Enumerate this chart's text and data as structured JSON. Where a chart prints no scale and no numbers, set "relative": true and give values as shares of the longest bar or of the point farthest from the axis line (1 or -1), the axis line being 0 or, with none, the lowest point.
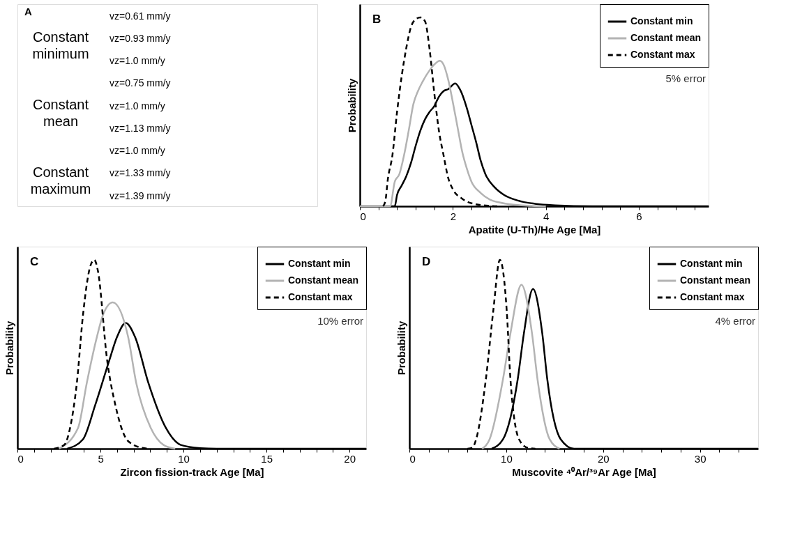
{
  "chart_data": [
    {
      "type": "other",
      "title": "A",
      "annotations": [
        "Constant minimum",
        "vz=0.61 mm/y",
        "vz=0.93 mm/y",
        "vz=1.0 mm/y",
        "Constant mean",
        "vz=0.75 mm/y",
        "vz=1.0 mm/y",
        "vz=1.13 mm/y",
        "Constant maximum",
        "vz=1.0 mm/y",
        "vz=1.33 mm/y",
        "vz=1.39 mm/y"
      ]
    },
    {
      "type": "line",
      "title": "B",
      "xlabel": "Apatite (U-Th)/He Age [Ma]",
      "ylabel": "Probability",
      "annotations": [
        "5% error"
      ],
      "relative": true,
      "legend": "top right",
      "xlim": [
        0,
        7.5
      ],
      "xticks": [
        0,
        {
          "value": 0.4,
          "label": null
        },
        {
          "value": 0.8,
          "label": null
        },
        {
          "value": 1.2,
          "label": null
        },
        {
          "value": 1.6,
          "label": null
        },
        2,
        {
          "value": 2.4,
          "label": null
        },
        {
          "value": 2.8,
          "label": null
        },
        {
          "value": 3.2,
          "label": null
        },
        {
          "value": 3.6,
          "label": null
        },
        4,
        {
          "value": 4.4,
          "label": null
        },
        {
          "value": 4.8,
          "label": null
        },
        {
          "value": 5.2,
          "label": null
        },
        {
          "value": 5.6,
          "label": null
        },
        6,
        {
          "value": 6.4,
          "label": null
        },
        {
          "value": 6.8,
          "label": null
        },
        {
          "value": 7.2,
          "label": null
        }
      ],
      "series": [
        {
          "name": "Constant min",
          "color": "#000000",
          "line_style": "solid",
          "x": [
            0,
            0.75,
            0.8,
            0.9,
            1.0,
            1.1,
            1.2,
            1.3,
            1.4,
            1.5,
            1.6,
            1.7,
            1.8,
            1.9,
            2.05,
            2.15,
            2.3,
            2.4,
            2.5,
            2.6,
            2.7,
            2.9,
            3.1,
            3.4,
            3.8,
            4.2,
            5.0,
            7.5
          ],
          "values": [
            0,
            0,
            0.06,
            0.11,
            0.16,
            0.23,
            0.32,
            0.4,
            0.46,
            0.5,
            0.53,
            0.58,
            0.61,
            0.62,
            0.65,
            0.62,
            0.52,
            0.43,
            0.34,
            0.24,
            0.17,
            0.1,
            0.06,
            0.03,
            0.012,
            0.005,
            0,
            0
          ]
        },
        {
          "name": "Constant mean",
          "color": "#b3b3b3",
          "line_style": "solid",
          "x": [
            0,
            0.65,
            0.75,
            0.85,
            0.95,
            1.05,
            1.15,
            1.25,
            1.35,
            1.5,
            1.6,
            1.72,
            1.8,
            1.9,
            2.0,
            2.1,
            2.2,
            2.3,
            2.4,
            2.6,
            2.8,
            3.0,
            3.3,
            3.6,
            4.0
          ],
          "values": [
            0,
            0,
            0.13,
            0.17,
            0.27,
            0.4,
            0.54,
            0.61,
            0.66,
            0.72,
            0.75,
            0.77,
            0.75,
            0.67,
            0.55,
            0.42,
            0.29,
            0.2,
            0.13,
            0.07,
            0.035,
            0.02,
            0.008,
            0.003,
            0
          ]
        },
        {
          "name": "Constant max",
          "color": "#000000",
          "line_style": "dashed",
          "x": [
            0.5,
            0.55,
            0.6,
            0.7,
            0.8,
            0.9,
            1.0,
            1.1,
            1.2,
            1.3,
            1.4,
            1.5,
            1.6,
            1.7,
            1.8,
            1.9,
            2.0,
            2.2,
            2.5,
            2.8,
            3.0
          ],
          "values": [
            0,
            0.03,
            0.14,
            0.27,
            0.5,
            0.69,
            0.84,
            0.95,
            0.99,
            1.0,
            0.98,
            0.83,
            0.6,
            0.4,
            0.27,
            0.15,
            0.09,
            0.04,
            0.01,
            0.002,
            0
          ]
        }
      ]
    },
    {
      "type": "line",
      "title": "C",
      "xlabel": "Zircon fission-track Age [Ma]",
      "ylabel": "Probability",
      "annotations": [
        "10% error"
      ],
      "relative": true,
      "legend": "top right",
      "xlim": [
        0,
        21
      ],
      "xticks": [
        0,
        {
          "value": 1,
          "label": null
        },
        {
          "value": 2,
          "label": null
        },
        {
          "value": 3,
          "label": null
        },
        {
          "value": 4,
          "label": null
        },
        5,
        {
          "value": 6,
          "label": null
        },
        {
          "value": 7,
          "label": null
        },
        {
          "value": 8,
          "label": null
        },
        {
          "value": 9,
          "label": null
        },
        10,
        {
          "value": 11,
          "label": null
        },
        {
          "value": 12,
          "label": null
        },
        {
          "value": 13,
          "label": null
        },
        {
          "value": 14,
          "label": null
        },
        15,
        {
          "value": 16,
          "label": null
        },
        {
          "value": 17,
          "label": null
        },
        {
          "value": 18,
          "label": null
        },
        {
          "value": 19,
          "label": null
        },
        20
      ],
      "series": [
        {
          "name": "Constant min",
          "color": "#000000",
          "line_style": "solid",
          "x": [
            3.0,
            3.95,
            4.68,
            5.54,
            5.99,
            6.52,
            7.09,
            7.88,
            8.94,
            9.84,
            11,
            12,
            21
          ],
          "values": [
            0,
            0.05,
            0.23,
            0.47,
            0.59,
            0.666,
            0.59,
            0.35,
            0.11,
            0.02,
            0.003,
            0,
            0
          ]
        },
        {
          "name": "Constant mean",
          "color": "#b3b3b3",
          "line_style": "solid",
          "x": [
            2.5,
            3.65,
            4.18,
            4.78,
            5.16,
            5.74,
            6.67,
            7.15,
            8.03,
            8.8,
            9.5
          ],
          "values": [
            0,
            0.11,
            0.35,
            0.59,
            0.71,
            0.775,
            0.59,
            0.35,
            0.11,
            0.02,
            0
          ]
        },
        {
          "name": "Constant max",
          "color": "#000000",
          "line_style": "dashed",
          "x": [
            2.2,
            2.82,
            3.17,
            3.58,
            3.95,
            4.4,
            4.63,
            4.85,
            5.4,
            5.9,
            6.5,
            7.0,
            7.5,
            8.0
          ],
          "values": [
            0,
            0.02,
            0.11,
            0.35,
            0.71,
            0.97,
            1.0,
            0.94,
            0.47,
            0.23,
            0.06,
            0.02,
            0.005,
            0
          ]
        }
      ]
    },
    {
      "type": "line",
      "title": "D",
      "xlabel": "Muscovite ⁴⁰Ar/³⁹Ar Age [Ma]",
      "ylabel": "Probability",
      "annotations": [
        "4% error"
      ],
      "relative": true,
      "legend": "top right",
      "xlim": [
        0,
        36
      ],
      "xticks": [
        0,
        {
          "value": 2,
          "label": null
        },
        {
          "value": 4,
          "label": null
        },
        {
          "value": 6,
          "label": null
        },
        {
          "value": 8,
          "label": null
        },
        10,
        {
          "value": 12,
          "label": null
        },
        {
          "value": 14,
          "label": null
        },
        {
          "value": 16,
          "label": null
        },
        {
          "value": 18,
          "label": null
        },
        20,
        {
          "value": 22,
          "label": null
        },
        {
          "value": 24,
          "label": null
        },
        {
          "value": 26,
          "label": null
        },
        {
          "value": 28,
          "label": null
        },
        30,
        {
          "value": 32,
          "label": null
        },
        {
          "value": 34,
          "label": null
        }
      ],
      "series": [
        {
          "name": "Constant min",
          "color": "#000000",
          "line_style": "solid",
          "x": [
            8.5,
            9.67,
            11.19,
            11.82,
            12.76,
            13.72,
            14.23,
            15.62,
            17,
            36
          ],
          "values": [
            0,
            0.05,
            0.37,
            0.61,
            0.846,
            0.61,
            0.37,
            0.05,
            0,
            0
          ]
        },
        {
          "name": "Constant mean",
          "color": "#b3b3b3",
          "line_style": "solid",
          "x": [
            7.5,
            8.28,
            9.67,
            10.43,
            11.57,
            12.66,
            13.22,
            14.48,
            15.5
          ],
          "values": [
            0,
            0.05,
            0.37,
            0.61,
            0.868,
            0.61,
            0.37,
            0.05,
            0
          ]
        },
        {
          "name": "Constant max",
          "color": "#000000",
          "line_style": "dashed",
          "x": [
            6.0,
            6.5,
            6.89,
            7.9,
            8.66,
            9.34,
            10.05,
            10.43,
            11.32,
            12.2,
            13.0
          ],
          "values": [
            0,
            0.005,
            0.05,
            0.37,
            0.73,
            1.0,
            0.73,
            0.37,
            0.05,
            0.005,
            0
          ]
        }
      ]
    }
  ]
}
